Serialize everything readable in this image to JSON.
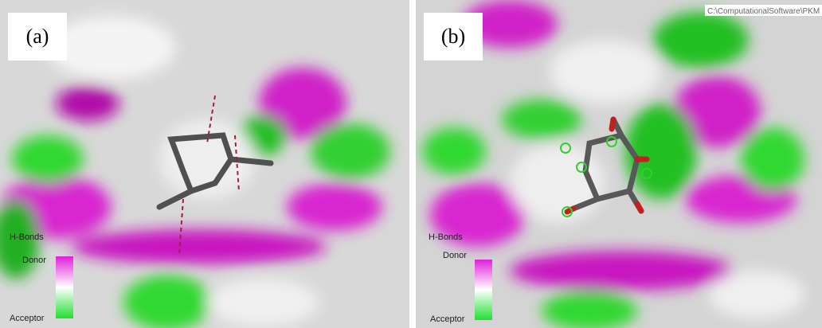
{
  "panels": [
    {
      "label": "(a)",
      "legend": {
        "title": "H-Bonds",
        "top": "Donor",
        "bottom": "Acceptor"
      }
    },
    {
      "label": "(b)",
      "legend": {
        "title": "H-Bonds",
        "top": "Donor",
        "bottom": "Acceptor"
      },
      "path": "C:\\ComputationalSoftware\\PKM"
    }
  ]
}
